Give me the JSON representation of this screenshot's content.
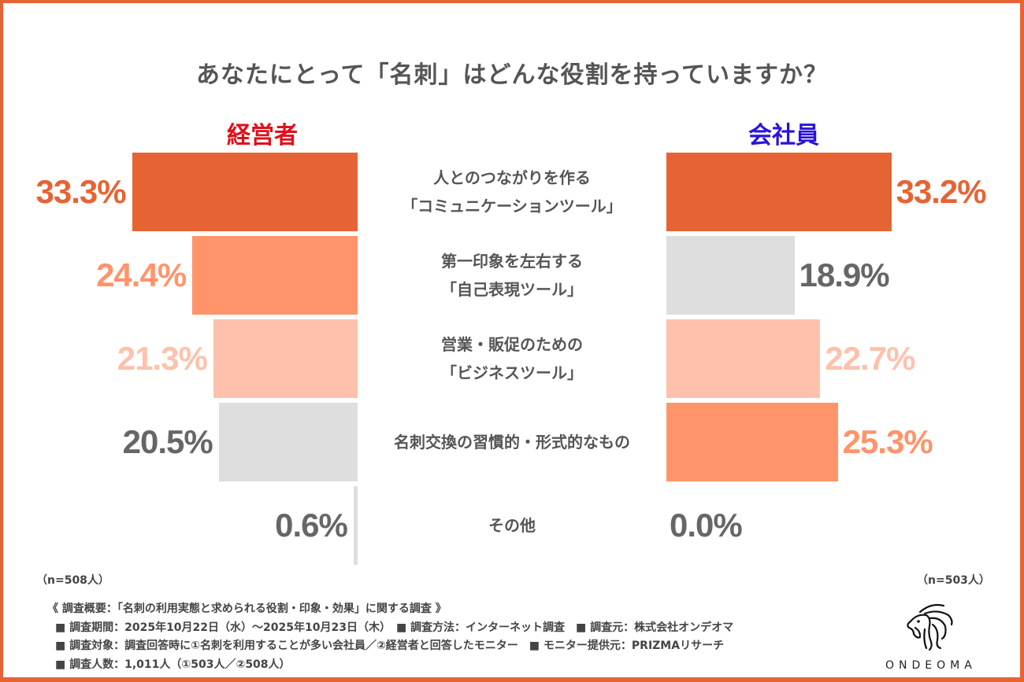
{
  "title": "あなたにとって「名刺」はどんな役割を持っていますか？",
  "groups": {
    "left": {
      "label": "経営者",
      "color": "#e0101a",
      "n_label": "（n=508人）"
    },
    "right": {
      "label": "会社員",
      "color": "#2a12d8",
      "n_label": "（n=503人）"
    }
  },
  "colors": {
    "frame": "#e66434",
    "rank1": "#e66434",
    "rank2": "#ff946b",
    "rank3": "#ffc1ab",
    "gray_bar": "#dedede",
    "gray_text": "#666666"
  },
  "chart_data": {
    "type": "bar",
    "orientation": "horizontal-butterfly",
    "title": "あなたにとって「名刺」はどんな役割を持っていますか？",
    "categories": [
      [
        "人とのつながりを作る",
        "「コミュニケーションツール」"
      ],
      [
        "第一印象を左右する",
        "「自己表現ツール」"
      ],
      [
        "営業・販促のための",
        "「ビジネスツール」"
      ],
      [
        "名刺交換の習慣的・形式的なもの"
      ],
      [
        "その他"
      ]
    ],
    "series": [
      {
        "name": "経営者",
        "values": [
          33.3,
          24.4,
          21.3,
          20.5,
          0.6
        ],
        "labels": [
          "33.3%",
          "24.4%",
          "21.3%",
          "20.5%",
          "0.6%"
        ],
        "color_keys": [
          "rank1",
          "rank2",
          "rank3",
          "gray",
          "gray"
        ]
      },
      {
        "name": "会社員",
        "values": [
          33.2,
          18.9,
          22.7,
          25.3,
          0.0
        ],
        "labels": [
          "33.2%",
          "18.9%",
          "22.7%",
          "25.3%",
          "0.0%"
        ],
        "color_keys": [
          "rank1",
          "gray",
          "rank3",
          "rank2",
          "gray"
        ]
      }
    ],
    "unit": "%",
    "legend": "group headers above each side"
  },
  "notes": {
    "heading": "《 調査概要：「名刺の利用実態と求められる役割・印象・効果」に関する調査 》",
    "lines": [
      "■ 調査期間：2025年10月22日（水）～2025年10月23日（木）　■ 調査方法：インターネット調査　■ 調査元：株式会社オンデオマ",
      "■ 調査対象：調査回答時に①名刺を利用することが多い会社員／②経営者と回答したモニター　■ モニター提供元：PRIZMAリサーチ",
      "■ 調査人数：1,011人（①503人／②508人）"
    ]
  },
  "logo": {
    "icon": "lion-head-icon",
    "text": "ONDEOMA"
  }
}
